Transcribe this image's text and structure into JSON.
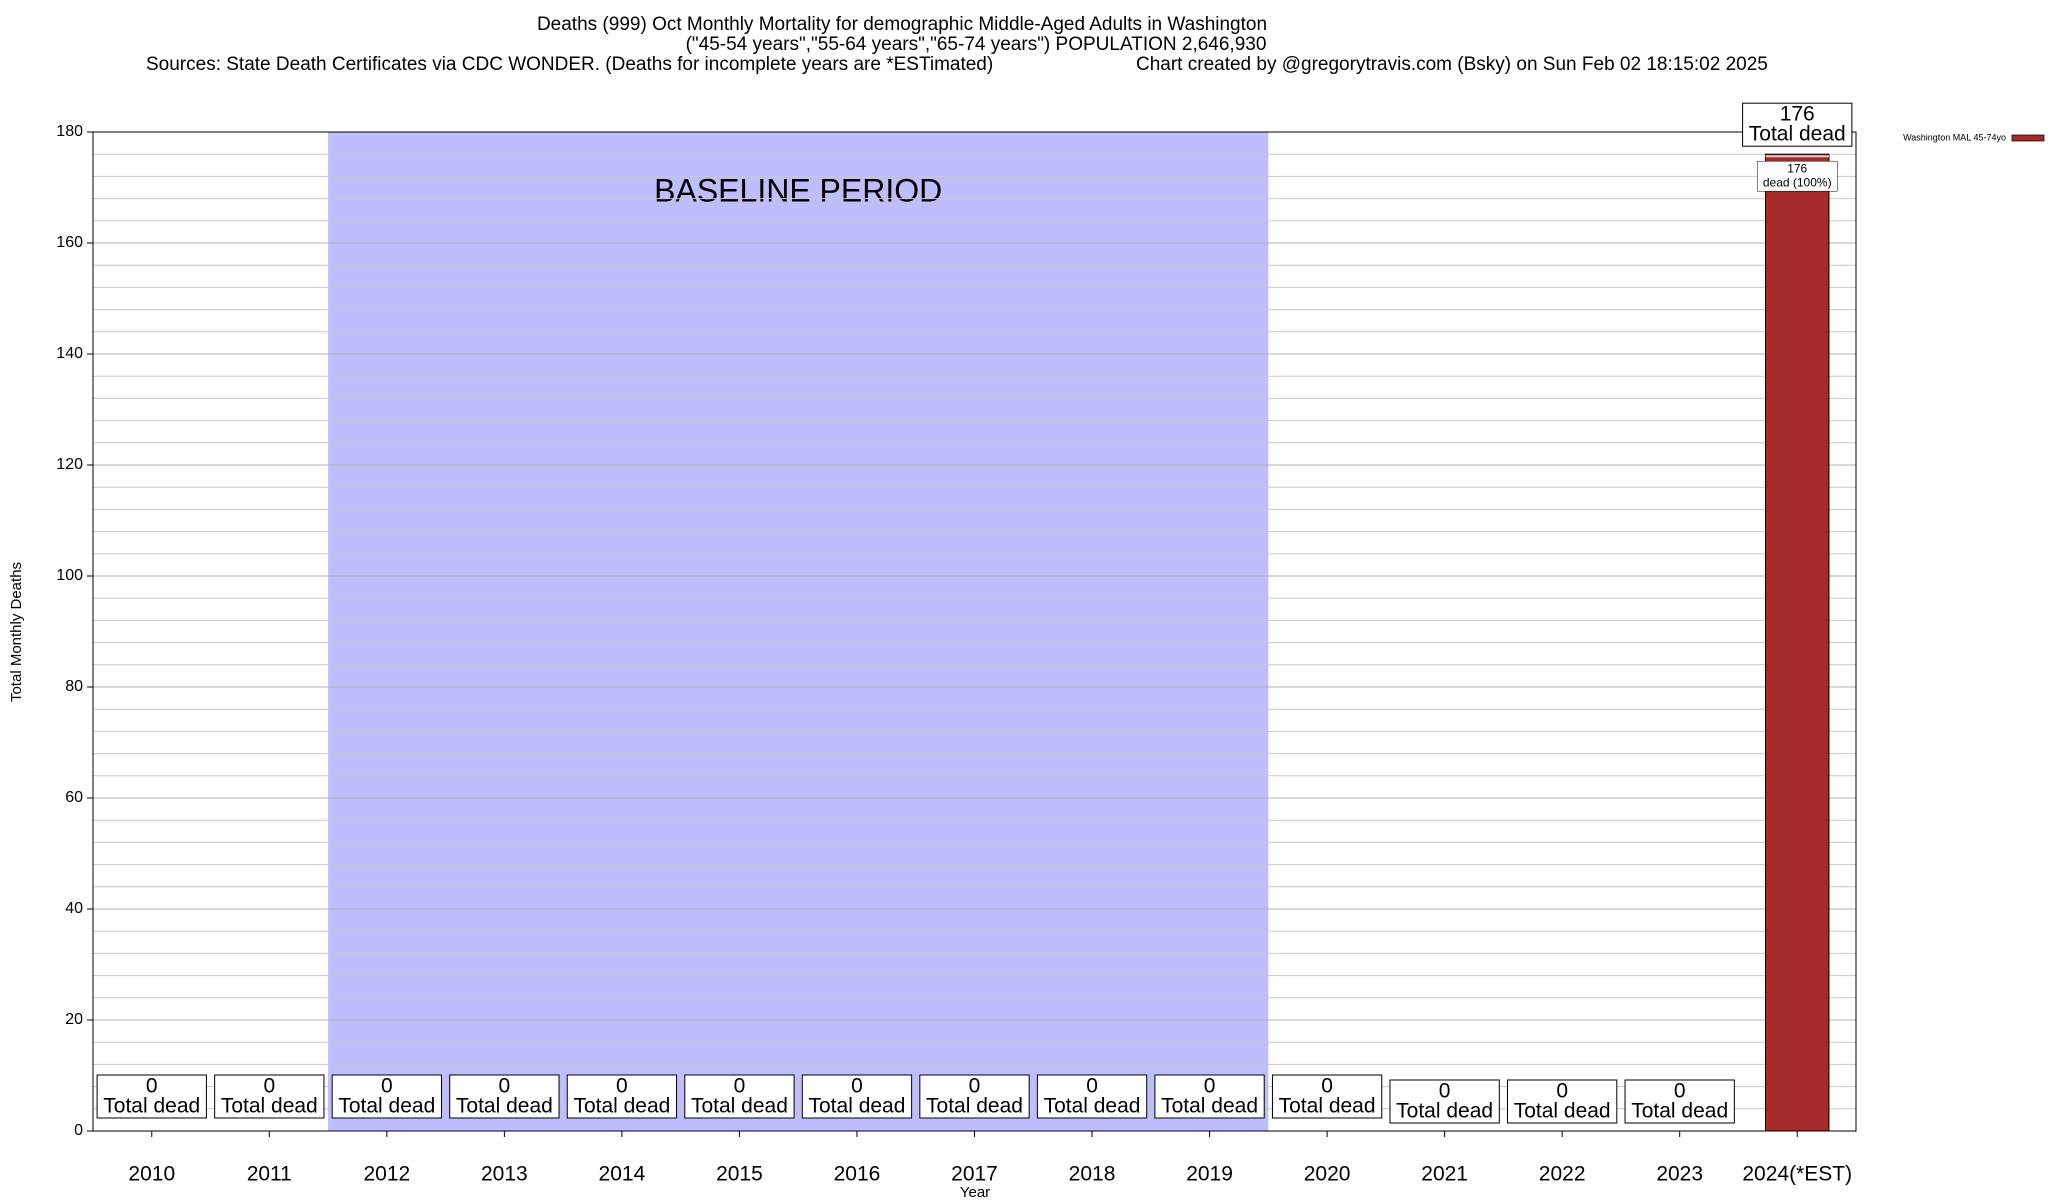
{
  "chart_data": {
    "type": "bar",
    "title": "Deaths (999) Oct Monthly Mortality for demographic Middle-Aged Adults in Washington",
    "subtitle": "(\"45-54 years\",\"55-64 years\",\"65-74 years\") POPULATION 2,646,930",
    "source": "Sources: State Death Certificates via CDC WONDER. (Deaths for incomplete years are *ESTimated)",
    "credit": "Chart created by @gregorytravis.com (Bsky) on Sun Feb 02 18:15:02 2025",
    "x_label": "Year",
    "y_label": "Total Monthly Deaths",
    "total_label": "Total dead",
    "inner_label": "dead (100%)",
    "categories": [
      "2010",
      "2011",
      "2012",
      "2013",
      "2014",
      "2015",
      "2016",
      "2017",
      "2018",
      "2019",
      "2020",
      "2021",
      "2022",
      "2023",
      "2024(*EST)"
    ],
    "series": [
      {
        "name": "Washington MAL 45-74yo",
        "color": "#a52a2a",
        "values": [
          0,
          0,
          0,
          0,
          0,
          0,
          0,
          0,
          0,
          0,
          0,
          0,
          0,
          0,
          176
        ]
      }
    ],
    "ylim": [
      0,
      180
    ],
    "yticks": [
      0,
      20,
      40,
      60,
      80,
      100,
      120,
      140,
      160,
      180
    ],
    "minor_yticks": [
      4,
      8,
      12,
      16,
      24,
      28,
      32,
      36,
      44,
      48,
      52,
      56,
      64,
      68,
      72,
      76,
      84,
      88,
      92,
      96,
      104,
      108,
      112,
      116,
      124,
      128,
      132,
      136,
      144,
      148,
      152,
      156,
      164,
      168,
      172,
      176
    ],
    "grid": true,
    "legend": "outside-right",
    "baseline": {
      "label": "BASELINE PERIOD",
      "start": "2012",
      "end": "2019",
      "color": "#bebefc"
    }
  }
}
